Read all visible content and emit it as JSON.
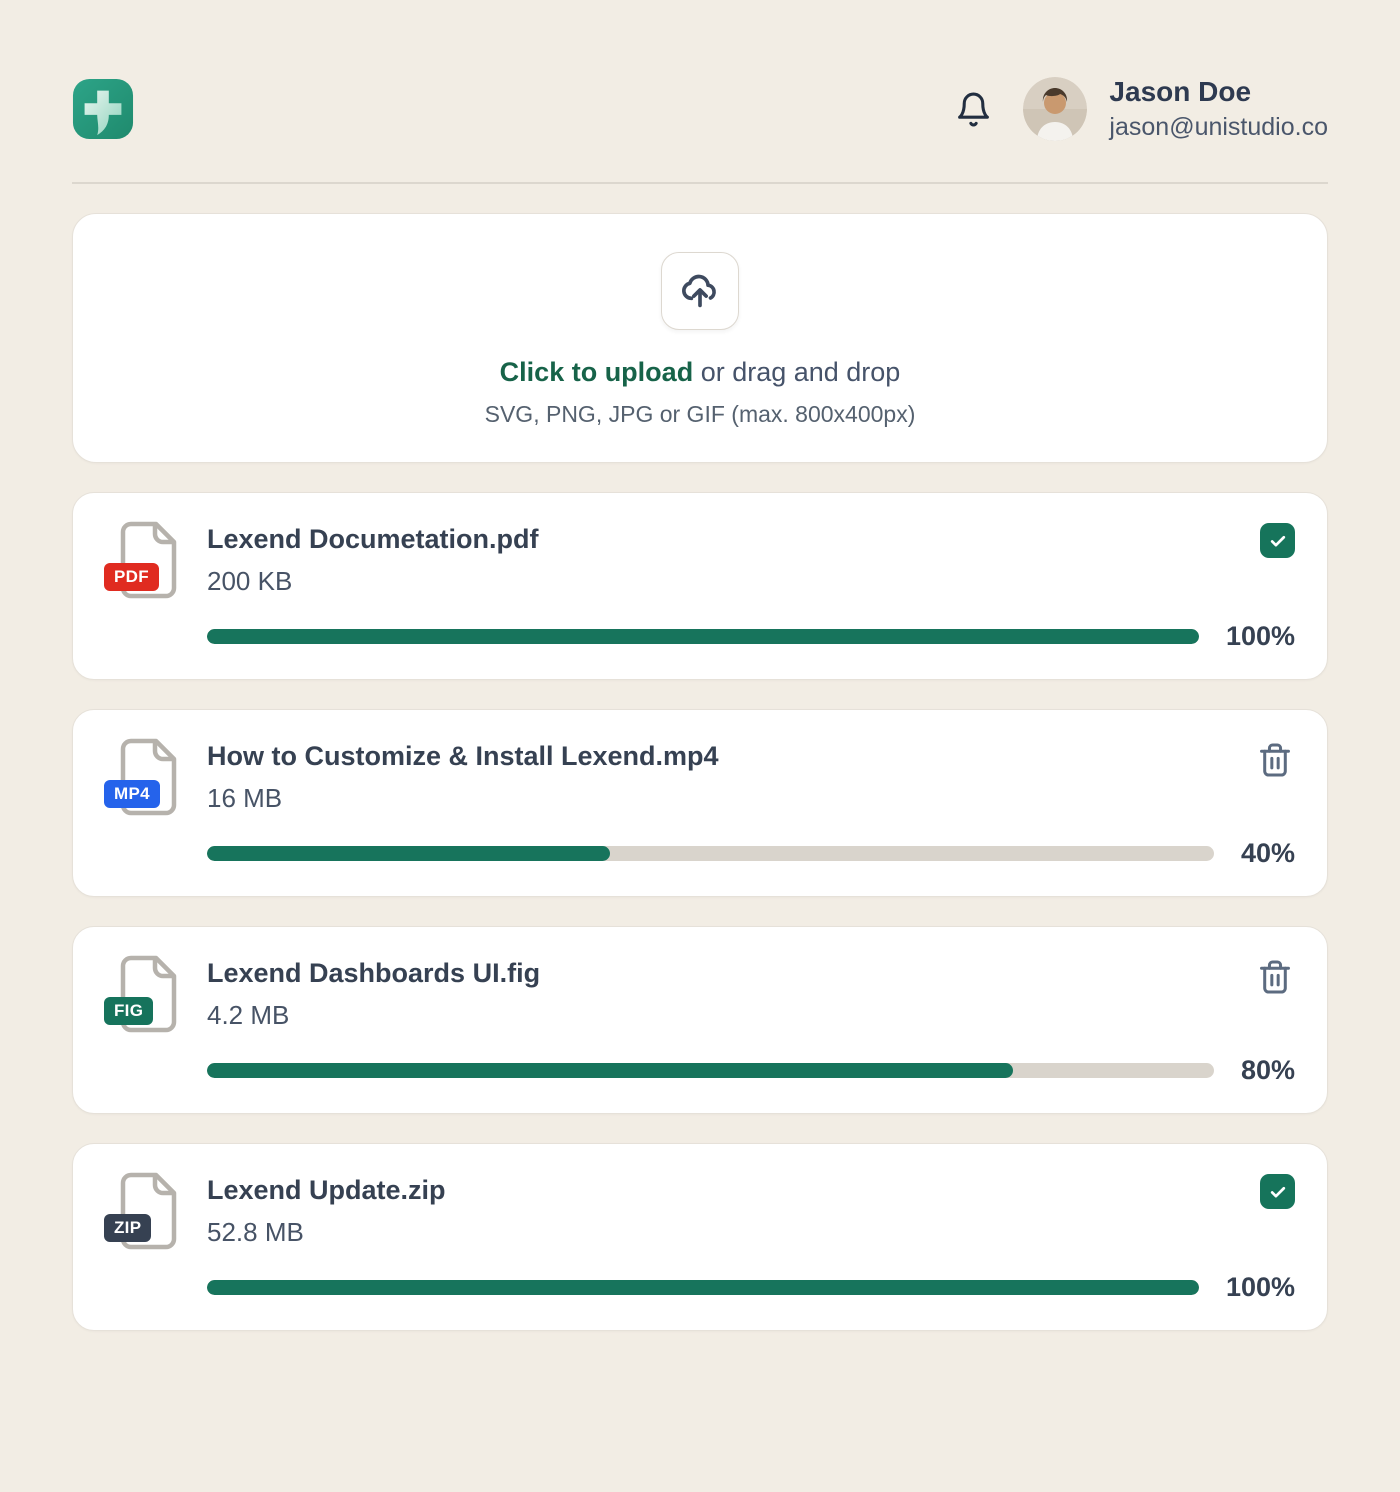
{
  "header": {
    "app_logo": "plus-logo",
    "user": {
      "name": "Jason Doe",
      "email": "jason@unistudio.co"
    }
  },
  "uploader": {
    "cta": "Click to upload",
    "cta_suffix": " or drag and drop",
    "hint": "SVG, PNG, JPG or GIF (max. 800x400px)"
  },
  "files": [
    {
      "name": "Lexend Documetation.pdf",
      "size": "200 KB",
      "type": "PDF",
      "badge_color": "#E02B20",
      "progress": 100,
      "progress_label": "100%",
      "action": "checked"
    },
    {
      "name": "How to Customize & Install Lexend.mp4",
      "size": "16 MB",
      "type": "MP4",
      "badge_color": "#2563EB",
      "progress": 40,
      "progress_label": "40%",
      "action": "delete"
    },
    {
      "name": "Lexend Dashboards UI.fig",
      "size": "4.2 MB",
      "type": "FIG",
      "badge_color": "#16735C",
      "progress": 80,
      "progress_label": "80%",
      "action": "delete"
    },
    {
      "name": "Lexend Update.zip",
      "size": "52.8 MB",
      "type": "ZIP",
      "badge_color": "#364152",
      "progress": 100,
      "progress_label": "100%",
      "action": "checked"
    }
  ],
  "colors": {
    "background": "#F2EDE4",
    "accent_green": "#17745C",
    "link_green": "#176349",
    "progress_track": "#D9D4CC",
    "text_primary": "#364152",
    "text_secondary": "#475366",
    "pdf_red": "#E02B20",
    "mp4_blue": "#2563EB",
    "fig_green": "#16735C",
    "zip_navy": "#364152"
  }
}
